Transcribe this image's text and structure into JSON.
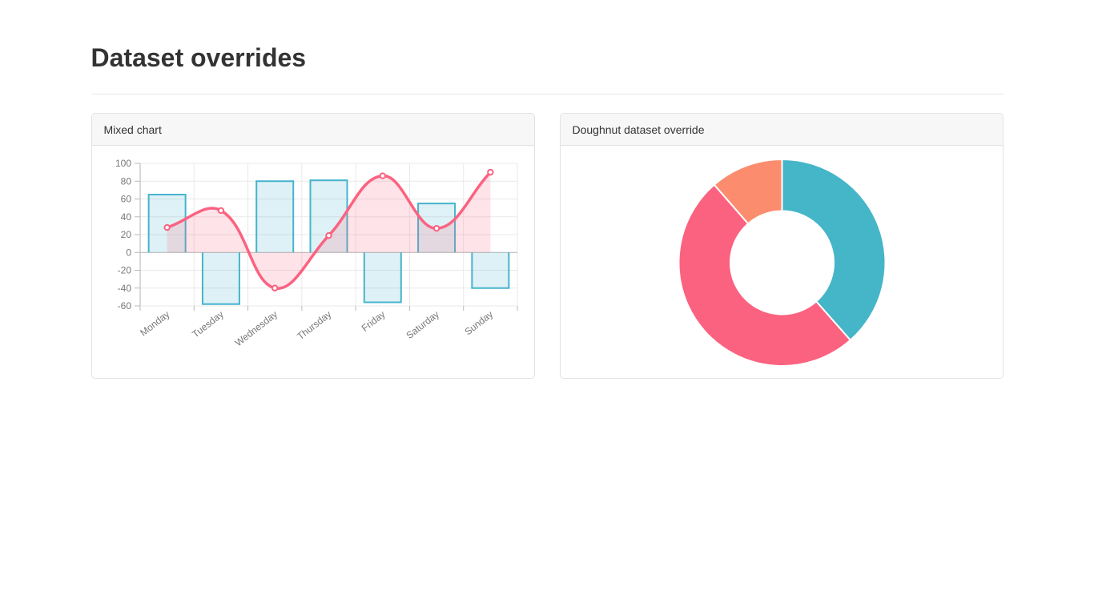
{
  "page": {
    "title": "Dataset overrides"
  },
  "cards": [
    {
      "title": "Mixed chart"
    },
    {
      "title": "Doughnut dataset override"
    }
  ],
  "chart_data": [
    {
      "type": "mixed",
      "title": "Mixed chart",
      "categories": [
        "Monday",
        "Tuesday",
        "Wednesday",
        "Thursday",
        "Friday",
        "Saturday",
        "Sunday"
      ],
      "series": [
        {
          "name": "bars",
          "type": "bar",
          "values": [
            65,
            -58,
            80,
            81,
            -56,
            55,
            -40
          ],
          "border_color": "#46b4cc",
          "fill_color": "rgba(70,180,204,0.18)"
        },
        {
          "name": "line",
          "type": "line",
          "values": [
            28,
            47,
            -40,
            19,
            86,
            27,
            90
          ],
          "color": "#fb6280",
          "fill_color": "rgba(251,98,128,0.18)",
          "fill_to": 0,
          "tension": 0.4,
          "point_style": "circle"
        }
      ],
      "ylim": [
        -60,
        100
      ],
      "ytick_step": 20,
      "yticks": [
        100,
        80,
        60,
        40,
        20,
        0,
        -20,
        -40,
        -60
      ],
      "grid": true,
      "legend": "none",
      "x_label_rotation": -38,
      "axis_color": "#b3b3b3",
      "zero_line_color": "#b3b3b3",
      "grid_color": "#e9e9e9",
      "tick_mark_color": "#b9b9b9",
      "tick_label_color": "#777777"
    },
    {
      "type": "doughnut",
      "title": "Doughnut dataset override",
      "segments": [
        {
          "name": "teal",
          "color": "#45b5c8",
          "percent": 38.5
        },
        {
          "name": "pink",
          "color": "#fb6280",
          "percent": 50.1
        },
        {
          "name": "orange",
          "color": "#fb8d6e",
          "percent": 11.4
        }
      ],
      "cutout_percent": 50,
      "rotation_start_deg": 0,
      "border_color": "#ffffff",
      "legend": "none"
    }
  ]
}
